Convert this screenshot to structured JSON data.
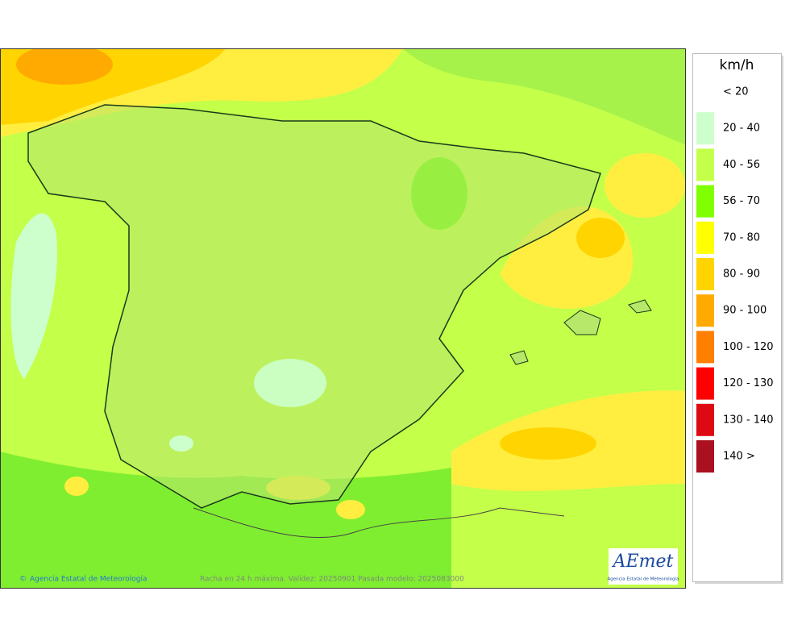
{
  "legend": {
    "title": "km/h",
    "items": [
      {
        "label": "< 20"
      },
      {
        "label": "20 - 40",
        "color": "#ccffcc"
      },
      {
        "label": "40 - 56",
        "color": "#c4ff4a"
      },
      {
        "label": "56 - 70",
        "color": "#80ff00"
      },
      {
        "label": "70 - 80",
        "color": "#ffff00"
      },
      {
        "label": "80 - 90",
        "color": "#ffd400"
      },
      {
        "label": "90 - 100",
        "color": "#ffaa00"
      },
      {
        "label": "100 - 120",
        "color": "#ff8000"
      },
      {
        "label": "120 - 130",
        "color": "#ff0000"
      },
      {
        "label": "130 - 140",
        "color": "#dd0a14"
      },
      {
        "label": "140 >",
        "color": "#aa1020"
      }
    ]
  },
  "map": {
    "credit": "Agencia Estatal de Meteorología",
    "caption": "Racha en 24 h máxima. Validez: 20250901 Pasada modelo: 2025083000"
  },
  "logo": {
    "name": "AEmet",
    "subtitle": "Agencia Estatal de Meteorología"
  }
}
